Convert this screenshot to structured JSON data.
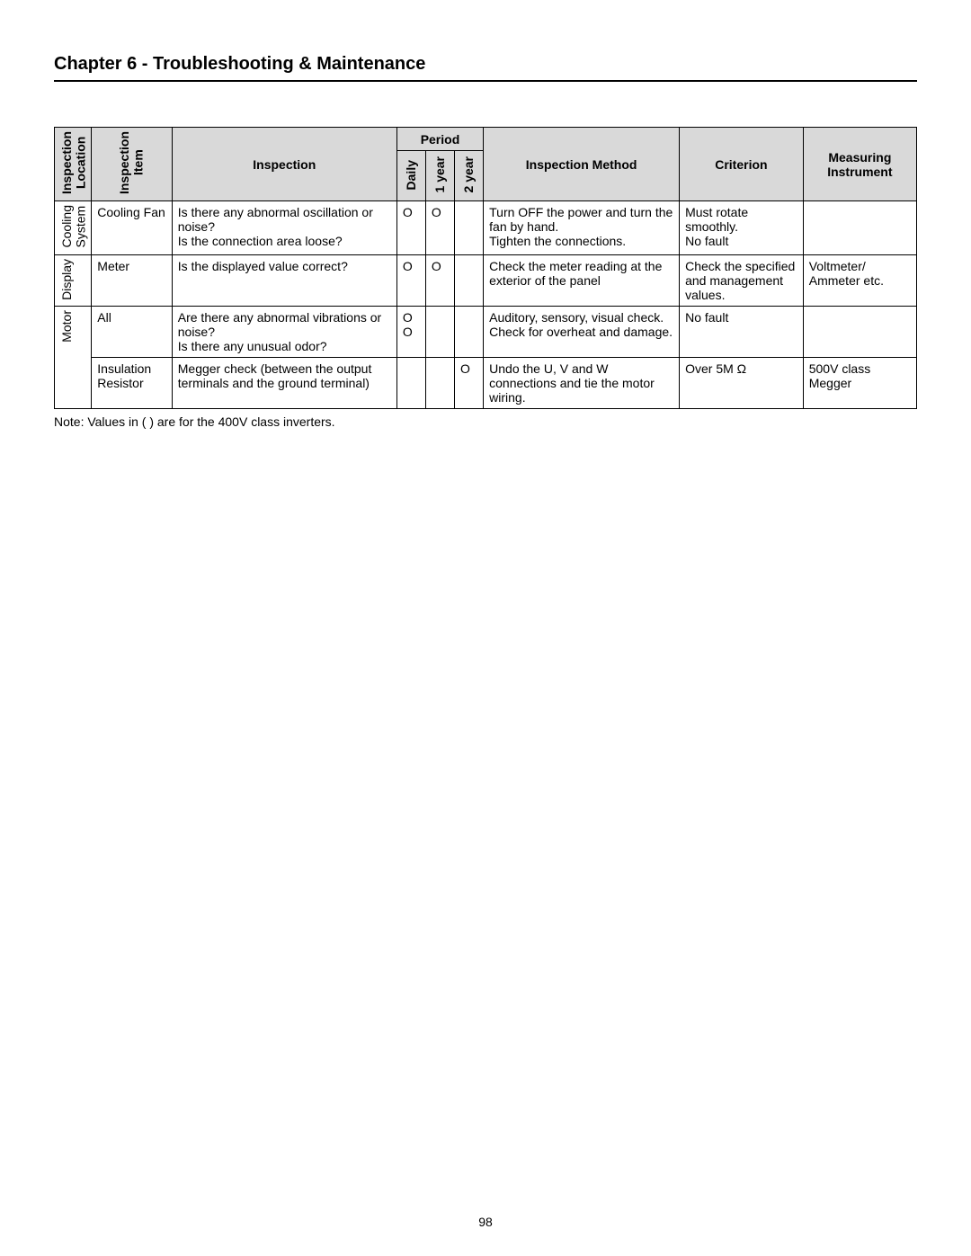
{
  "chapter_title": "Chapter 6 - Troubleshooting & Maintenance",
  "page_number": "98",
  "footnote": "Note: Values in ( ) are for the 400V class inverters.",
  "headers": {
    "inspection_location": "Inspection\nLocation",
    "inspection_item": "Inspection\nItem",
    "inspection": "Inspection",
    "period": "Period",
    "daily": "Daily",
    "year1": "1 year",
    "year2": "2 year",
    "inspection_method": "Inspection Method",
    "criterion": "Criterion",
    "measuring_instrument": "Measuring Instrument"
  },
  "rows": [
    {
      "location": "Cooling\nSystem",
      "item": "Cooling Fan",
      "inspection": "Is there any abnormal oscillation or noise?\nIs the connection area loose?",
      "daily": "O",
      "year1": "O",
      "year2": "",
      "method": "Turn OFF the power and turn the fan by hand.\nTighten the connections.",
      "criterion": "Must rotate smoothly.\nNo fault",
      "instrument": ""
    },
    {
      "location": "Display",
      "item": "Meter",
      "inspection": "Is the displayed value correct?",
      "daily": "O",
      "year1": "O",
      "year2": "",
      "method": "Check the meter reading at the exterior of the panel",
      "criterion": "Check the specified and management values.",
      "instrument": "Voltmeter/ Ammeter etc."
    },
    {
      "location": "Motor",
      "item": "All",
      "inspection": "Are there any abnormal vibrations or noise?\nIs there any unusual odor?",
      "daily": "O\nO",
      "year1": "",
      "year2": "",
      "method": "Auditory, sensory, visual check.\nCheck for overheat and damage.",
      "criterion": "No fault",
      "instrument": ""
    },
    {
      "location": "",
      "item": "Insulation Resistor",
      "inspection": "Megger check (between the output terminals and the ground terminal)",
      "daily": "",
      "year1": "",
      "year2": "O",
      "method": "Undo the U, V and W connections and tie the motor wiring.",
      "criterion": "Over 5M Ω",
      "instrument": "500V class Megger"
    }
  ]
}
